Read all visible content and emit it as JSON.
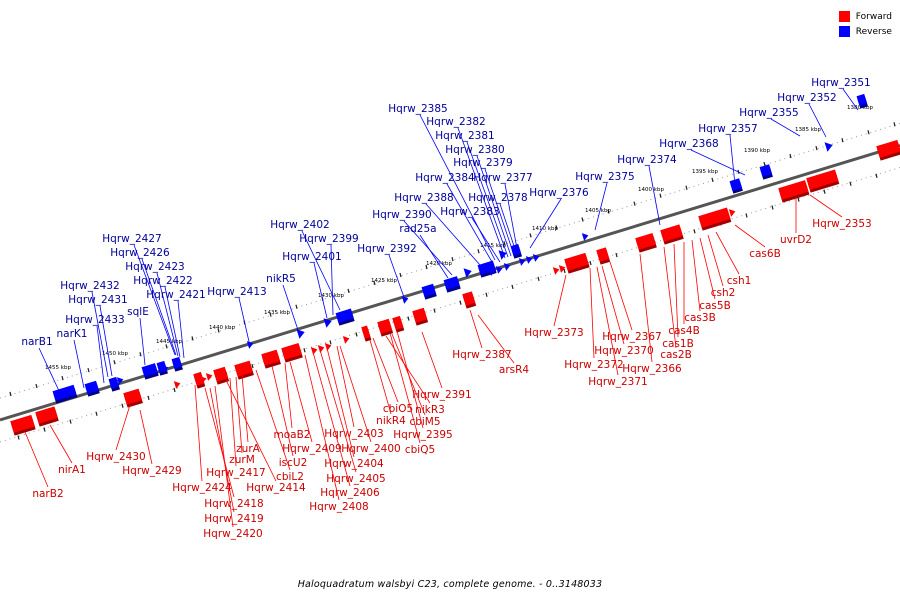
{
  "legend": {
    "forward_label": "Forward",
    "reverse_label": "Reverse",
    "forward_color": "#ff0000",
    "reverse_color": "#0000ff",
    "forward_label_color": "#cc0000",
    "reverse_label_color": "#000099"
  },
  "caption": "Haloquadratum walsbyi C23, complete genome. - 0..3148033",
  "axis_ticks": [
    "1380 kbp",
    "1385 kbp",
    "1390 kbp",
    "1395 kbp",
    "1400 kbp",
    "1405 kbp",
    "1410 kbp",
    "1415 kbp",
    "1420 kbp",
    "1425 kbp",
    "1430 kbp",
    "1435 kbp",
    "1440 kbp",
    "1445 kbp",
    "1450 kbp",
    "1455 kbp"
  ],
  "reverse_labels": [
    "Hqrw_2351",
    "Hqrw_2352",
    "Hqrw_2355",
    "Hqrw_2357",
    "Hqrw_2368",
    "Hqrw_2374",
    "Hqrw_2375",
    "Hqrw_2376",
    "Hqrw_2385",
    "Hqrw_2382",
    "Hqrw_2381",
    "Hqrw_2380",
    "Hqrw_2379",
    "Hqrw_2384",
    "Hqrw_2377",
    "Hqrw_2388",
    "Hqrw_2378",
    "Hqrw_2383",
    "Hqrw_2390",
    "rad25a",
    "Hqrw_2392",
    "Hqrw_2402",
    "Hqrw_2399",
    "Hqrw_2401",
    "nikR5",
    "Hqrw_2413",
    "Hqrw_2427",
    "Hqrw_2426",
    "Hqrw_2423",
    "Hqrw_2422",
    "Hqrw_2421",
    "Hqrw_2432",
    "Hqrw_2431",
    "sqlE",
    "Hqrw_2433",
    "narK1",
    "narB1"
  ],
  "forward_labels": [
    "Hqrw_2353",
    "uvrD2",
    "cas6B",
    "csh1",
    "csh2",
    "cas5B",
    "cas3B",
    "cas4B",
    "cas1B",
    "cas2B",
    "Hqrw_2367",
    "Hqrw_2370",
    "Hqrw_2366",
    "Hqrw_2373",
    "Hqrw_2372",
    "Hqrw_2371",
    "Hqrw_2387",
    "arsR4",
    "Hqrw_2391",
    "cbiO5",
    "nikR3",
    "nikR4",
    "cbiM5",
    "Hqrw_2395",
    "cbiQ5",
    "Hqrw_2403",
    "Hqrw_2400",
    "Hqrw_2404",
    "Hqrw_2405",
    "Hqrw_2406",
    "Hqrw_2408",
    "moaB2",
    "Hqrw_2409",
    "iscU2",
    "cbiL2",
    "zurA",
    "zurM",
    "Hqrw_2417",
    "Hqrw_2414",
    "Hqrw_2424",
    "Hqrw_2418",
    "Hqrw_2419",
    "Hqrw_2420",
    "Hqrw_2430",
    "Hqrw_2429",
    "nirA1",
    "narB2"
  ]
}
